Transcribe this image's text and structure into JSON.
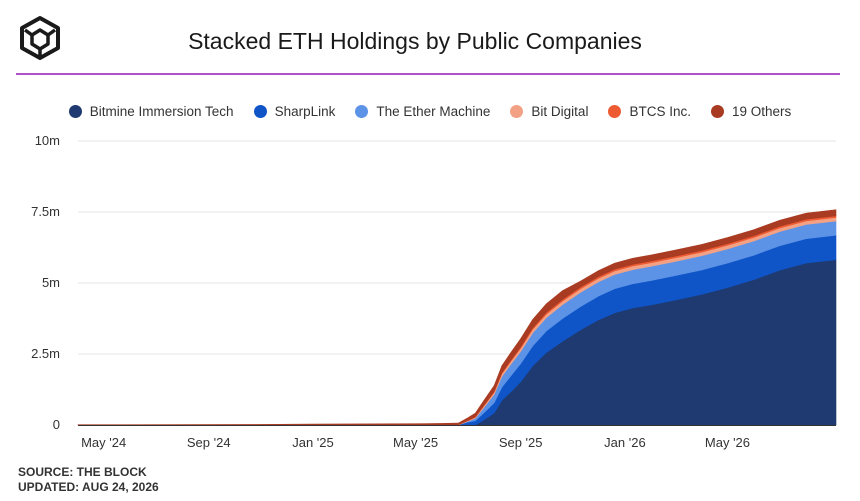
{
  "header": {
    "title": "Stacked ETH Holdings by Public Companies"
  },
  "footer": {
    "source": "SOURCE: THE BLOCK",
    "updated": "UPDATED: AUG 24, 2026"
  },
  "colors": {
    "accent": "#b14fc5",
    "grid": "#e6e6e6",
    "series": [
      "#1f3a70",
      "#0f55c8",
      "#5c93e6",
      "#f3a184",
      "#ee5b33",
      "#a93b22"
    ]
  },
  "chart_data": {
    "type": "area",
    "stacked": true,
    "title": "Stacked ETH Holdings by Public Companies",
    "xlabel": "",
    "ylabel": "",
    "ylim": [
      0,
      10000000
    ],
    "xlim": [
      "2024-04-01",
      "2026-09-05"
    ],
    "y_ticks": [
      {
        "value": 0,
        "label": "0"
      },
      {
        "value": 2500000,
        "label": "2.5m"
      },
      {
        "value": 5000000,
        "label": "5m"
      },
      {
        "value": 7500000,
        "label": "7.5m"
      },
      {
        "value": 10000000,
        "label": "10m"
      }
    ],
    "x_ticks": [
      {
        "date": "2024-05-01",
        "label": "May '24"
      },
      {
        "date": "2024-09-01",
        "label": "Sep '24"
      },
      {
        "date": "2025-01-01",
        "label": "Jan '25"
      },
      {
        "date": "2025-05-01",
        "label": "May '25"
      },
      {
        "date": "2025-09-01",
        "label": "Sep '25"
      },
      {
        "date": "2026-01-01",
        "label": "Jan '26"
      },
      {
        "date": "2026-05-01",
        "label": "May '26"
      }
    ],
    "grid": true,
    "legend_position": "top",
    "x": [
      "2024-04-01",
      "2024-11-01",
      "2025-01-01",
      "2025-05-01",
      "2025-06-01",
      "2025-06-20",
      "2025-07-01",
      "2025-07-10",
      "2025-07-20",
      "2025-08-01",
      "2025-08-10",
      "2025-08-20",
      "2025-09-01",
      "2025-09-15",
      "2025-10-01",
      "2025-10-20",
      "2025-11-10",
      "2025-12-01",
      "2025-12-20",
      "2026-01-10",
      "2026-02-01",
      "2026-03-01",
      "2026-04-01",
      "2026-05-01",
      "2026-06-01",
      "2026-07-01",
      "2026-08-01",
      "2026-09-05"
    ],
    "series": [
      {
        "name": "Bitmine Immersion Tech",
        "values": [
          0,
          0,
          0,
          0,
          0,
          0,
          0,
          0,
          180000,
          420000,
          870000,
          1150000,
          1520000,
          2080000,
          2550000,
          2950000,
          3350000,
          3700000,
          3950000,
          4120000,
          4230000,
          4400000,
          4600000,
          4840000,
          5120000,
          5450000,
          5700000,
          5820000
        ]
      },
      {
        "name": "SharpLink",
        "values": [
          0,
          0,
          0,
          0,
          0,
          0,
          100000,
          150000,
          250000,
          360000,
          460000,
          560000,
          640000,
          700000,
          760000,
          800000,
          820000,
          840000,
          850000,
          850000,
          860000,
          860000,
          860000,
          860000,
          860000,
          860000,
          860000,
          860000
        ]
      },
      {
        "name": "The Ether Machine",
        "values": [
          0,
          0,
          0,
          0,
          0,
          0,
          30000,
          90000,
          190000,
          300000,
          380000,
          410000,
          430000,
          460000,
          470000,
          490000,
          500000,
          500000,
          500000,
          500000,
          500000,
          500000,
          500000,
          500000,
          500000,
          500000,
          500000,
          500000
        ]
      },
      {
        "name": "Bit Digital",
        "values": [
          0,
          0,
          0,
          0,
          0,
          0,
          15000,
          30000,
          50000,
          70000,
          90000,
          100000,
          110000,
          120000,
          120000,
          120000,
          125000,
          125000,
          125000,
          125000,
          125000,
          125000,
          125000,
          125000,
          125000,
          125000,
          125000,
          125000
        ]
      },
      {
        "name": "BTCS Inc.",
        "values": [
          0,
          0,
          10000,
          10000,
          12000,
          12000,
          15000,
          20000,
          25000,
          30000,
          35000,
          40000,
          50000,
          55000,
          60000,
          60000,
          60000,
          60000,
          60000,
          60000,
          60000,
          60000,
          60000,
          60000,
          60000,
          60000,
          60000,
          60000
        ]
      },
      {
        "name": "19 Others",
        "values": [
          10000,
          20000,
          25000,
          35000,
          45000,
          55000,
          90000,
          130000,
          170000,
          210000,
          250000,
          270000,
          290000,
          300000,
          305000,
          310000,
          210000,
          210000,
          215000,
          215000,
          215000,
          215000,
          215000,
          215000,
          215000,
          215000,
          215000,
          215000
        ]
      }
    ]
  }
}
